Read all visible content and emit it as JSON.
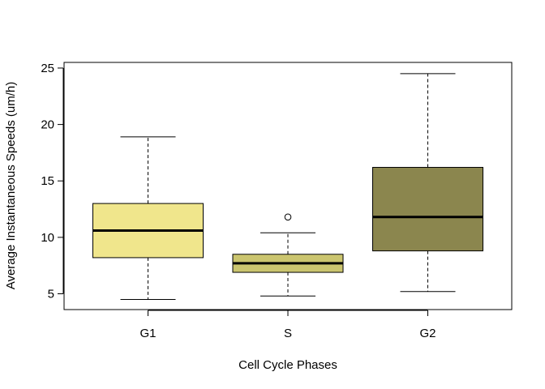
{
  "chart_data": {
    "type": "box",
    "xlabel": "Cell Cycle Phases",
    "ylabel": "Average Instantaneous Speeds (um/h)",
    "ylim": [
      3.6,
      25.5
    ],
    "yticks": [
      5,
      10,
      15,
      20,
      25
    ],
    "categories": [
      "G1",
      "S",
      "G2"
    ],
    "boxes": [
      {
        "category": "G1",
        "whisker_low": 4.5,
        "q1": 8.2,
        "median": 10.6,
        "q3": 13.0,
        "whisker_high": 18.9,
        "outliers": [],
        "color": "#f0e68c"
      },
      {
        "category": "S",
        "whisker_low": 4.8,
        "q1": 6.9,
        "median": 7.7,
        "q3": 8.5,
        "whisker_high": 10.4,
        "outliers": [
          11.8
        ],
        "color": "#cbc56f"
      },
      {
        "category": "G2",
        "whisker_low": 5.2,
        "q1": 8.8,
        "median": 11.8,
        "q3": 16.2,
        "whisker_high": 24.5,
        "outliers": [],
        "color": "#8b864e"
      }
    ],
    "grid": false,
    "legend": "none"
  }
}
